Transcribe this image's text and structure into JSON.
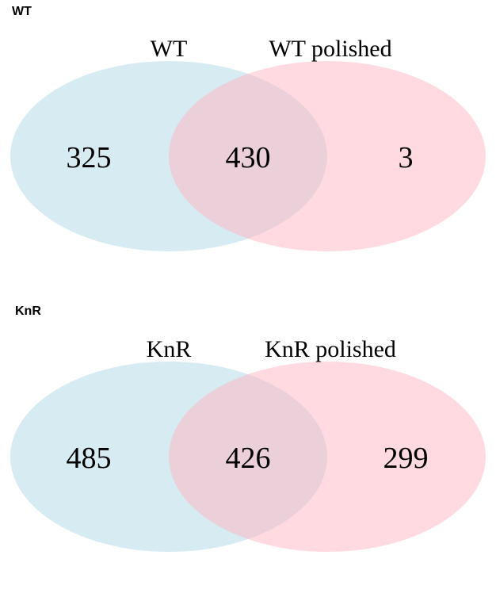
{
  "panels": [
    {
      "tag": "WT",
      "set_a": {
        "label": "WT",
        "color": "#add8e6"
      },
      "set_b": {
        "label": "WT polished",
        "color": "#ffb6c1"
      },
      "counts": {
        "only_a": "325",
        "both": "430",
        "only_b": "3"
      }
    },
    {
      "tag": "KnR",
      "set_a": {
        "label": "KnR",
        "color": "#add8e6"
      },
      "set_b": {
        "label": "KnR polished",
        "color": "#ffb6c1"
      },
      "counts": {
        "only_a": "485",
        "both": "426",
        "only_b": "299"
      }
    }
  ]
}
